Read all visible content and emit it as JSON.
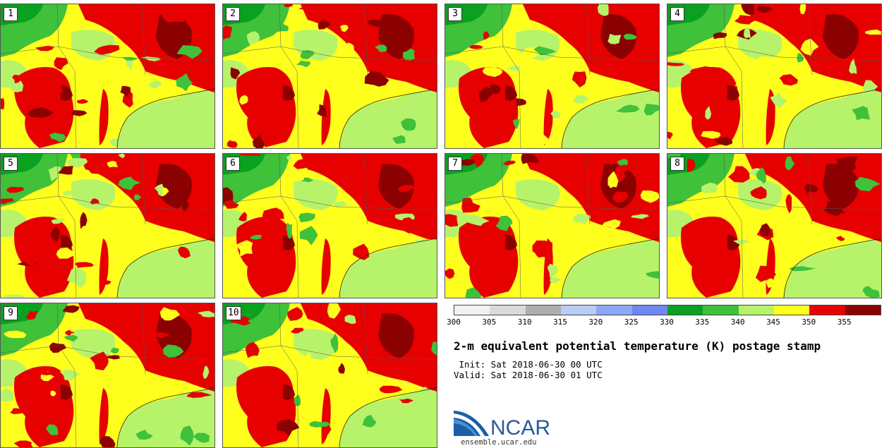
{
  "panels": [
    "1",
    "2",
    "3",
    "4",
    "5",
    "6",
    "7",
    "8",
    "9",
    "10"
  ],
  "colorbar": {
    "colors": [
      "#f2f2f2",
      "#dadada",
      "#aeaeae",
      "#b9ccf7",
      "#8da8f5",
      "#6f87f0",
      "#0aa020",
      "#3fc13a",
      "#b7f36a",
      "#ffff1e",
      "#e60000",
      "#8b0000"
    ],
    "ticks": [
      "300",
      "305",
      "310",
      "315",
      "320",
      "325",
      "330",
      "335",
      "340",
      "345",
      "350",
      "355"
    ]
  },
  "title": "2-m equivalent potential temperature (K) postage stamp",
  "init": " Init: Sat 2018-06-30 00 UTC",
  "valid": "Valid: Sat 2018-06-30 01 UTC",
  "logo_text": "NCAR",
  "url": "ensemble.ucar.edu"
}
